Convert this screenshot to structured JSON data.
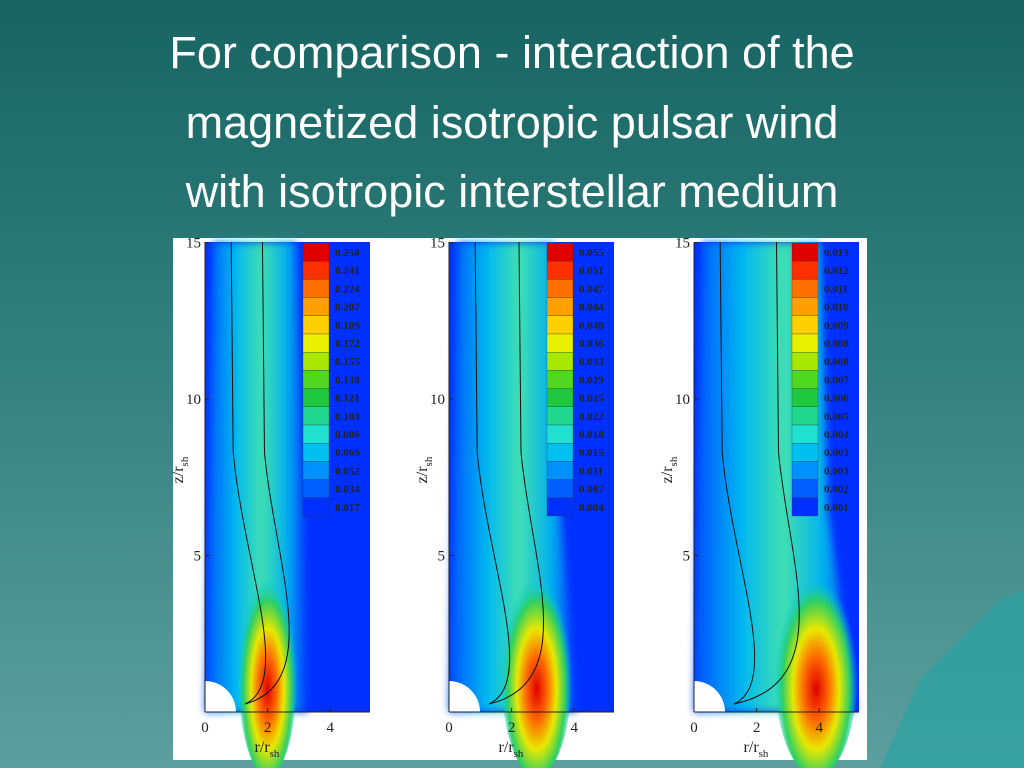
{
  "header": {
    "title_lines": [
      "For comparison - interaction of the",
      "magnetized isotropic pulsar wind",
      "with isotropic interstellar medium"
    ]
  },
  "panels": [
    {
      "colorbar": [
        "0.258",
        "0.241",
        "0.224",
        "0.207",
        "0.189",
        "0.172",
        "0.155",
        "0.138",
        "0.121",
        "0.103",
        "0.086",
        "0.069",
        "0.052",
        "0.034",
        "0.017"
      ],
      "yticks": [
        "15",
        "10",
        "5"
      ],
      "xticks": [
        "0",
        "2",
        "4"
      ],
      "ylabel": {
        "main": "z/r",
        "sub": "sh"
      },
      "xlabel": {
        "main": "r/r",
        "sub": "sh"
      }
    },
    {
      "colorbar": [
        "0.055",
        "0.051",
        "0.047",
        "0.044",
        "0.040",
        "0.036",
        "0.033",
        "0.029",
        "0.025",
        "0.022",
        "0.018",
        "0.015",
        "0.011",
        "0.007",
        "0.004"
      ],
      "yticks": [
        "15",
        "10",
        "5"
      ],
      "xticks": [
        "0",
        "2",
        "4"
      ],
      "ylabel": {
        "main": "z/r",
        "sub": "sh"
      },
      "xlabel": {
        "main": "r/r",
        "sub": "sh"
      }
    },
    {
      "colorbar": [
        "0.013",
        "0.012",
        "0.011",
        "0.010",
        "0.009",
        "0.008",
        "0.008",
        "0.007",
        "0.006",
        "0.005",
        "0.004",
        "0.003",
        "0.003",
        "0.002",
        "0.001"
      ],
      "yticks": [
        "15",
        "10",
        "5"
      ],
      "xticks": [
        "0",
        "2",
        "4"
      ],
      "ylabel": {
        "main": "z/r",
        "sub": "sh"
      },
      "xlabel": {
        "main": "r/r",
        "sub": "sh"
      }
    }
  ]
}
